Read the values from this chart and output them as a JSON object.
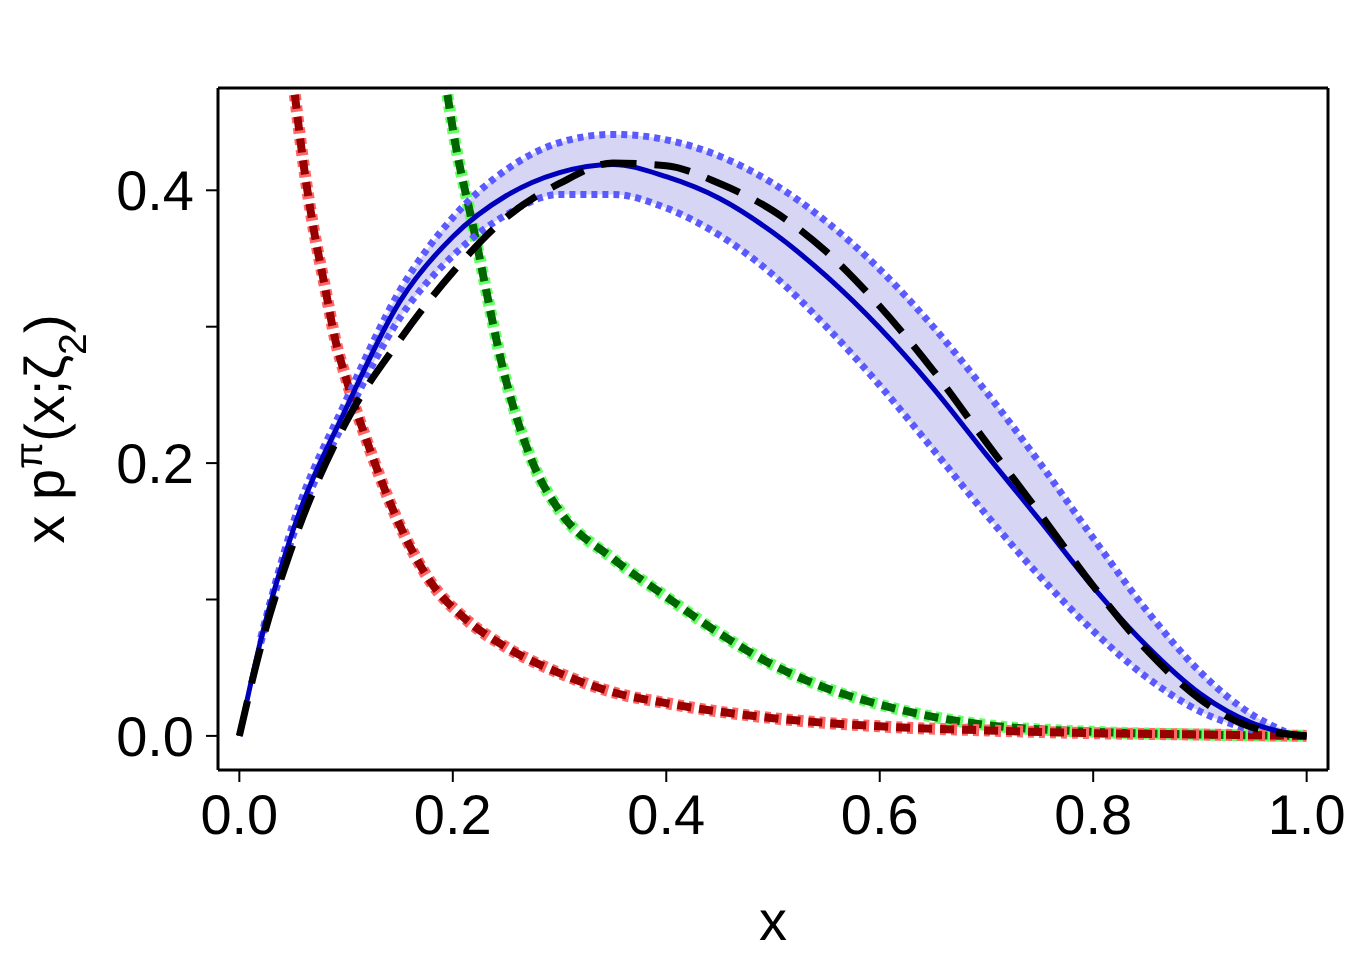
{
  "chart_data": {
    "type": "line",
    "xlabel": "x",
    "ylabel": "x p$^{π}$(x;ζ$_{2}$)",
    "xlim": [
      -0.02,
      1.02
    ],
    "ylim": [
      -0.025,
      0.475
    ],
    "xticks": [
      {
        "value": 0,
        "label": "0.0"
      },
      {
        "value": 0.2,
        "label": "0.2"
      },
      {
        "value": 0.4,
        "label": "0.4"
      },
      {
        "value": 0.6,
        "label": "0.6"
      },
      {
        "value": 0.8,
        "label": "0.8"
      },
      {
        "value": 1,
        "label": "1.0"
      }
    ],
    "yticks": [
      {
        "value": 0,
        "label": "0.0"
      },
      {
        "value": 0.1,
        "label": null
      },
      {
        "value": 0.2,
        "label": "0.2"
      },
      {
        "value": 0.3,
        "label": null
      },
      {
        "value": 0.4,
        "label": "0.4"
      }
    ],
    "grid": false,
    "series": [
      {
        "color": "#66ff66",
        "line_style": "dotted",
        "x": [
          0.195,
          0.2,
          0.22,
          0.25,
          0.275,
          0.3,
          0.35,
          0.4,
          0.45,
          0.5,
          0.55,
          0.6,
          0.65,
          0.7,
          0.8,
          0.9,
          1.0
        ],
        "values": [
          0.47,
          0.445,
          0.37,
          0.26,
          0.2,
          0.165,
          0.13,
          0.102,
          0.075,
          0.052,
          0.035,
          0.023,
          0.014,
          0.008,
          0.003,
          0.001,
          0
        ]
      },
      {
        "color": "#006600",
        "line_style": "dashed",
        "x": [
          0.195,
          0.2,
          0.22,
          0.25,
          0.275,
          0.3,
          0.35,
          0.4,
          0.45,
          0.5,
          0.55,
          0.6,
          0.65,
          0.7,
          0.8,
          0.9,
          1.0
        ],
        "values": [
          0.47,
          0.445,
          0.37,
          0.26,
          0.2,
          0.165,
          0.13,
          0.102,
          0.075,
          0.052,
          0.035,
          0.023,
          0.014,
          0.008,
          0.003,
          0.001,
          0
        ]
      },
      {
        "color": "#ff6666",
        "line_style": "dotted",
        "x": [
          0.052,
          0.06,
          0.07,
          0.08,
          0.09,
          0.1,
          0.12,
          0.15,
          0.18,
          0.21,
          0.25,
          0.3,
          0.35,
          0.4,
          0.5,
          0.6,
          0.7,
          0.8,
          0.9,
          1.0
        ],
        "values": [
          0.47,
          0.42,
          0.37,
          0.33,
          0.29,
          0.262,
          0.215,
          0.155,
          0.112,
          0.087,
          0.065,
          0.046,
          0.032,
          0.024,
          0.013,
          0.007,
          0.004,
          0.002,
          0.001,
          0
        ]
      },
      {
        "color": "#990000",
        "line_style": "dashed",
        "x": [
          0.052,
          0.06,
          0.07,
          0.08,
          0.09,
          0.1,
          0.12,
          0.15,
          0.18,
          0.21,
          0.25,
          0.3,
          0.35,
          0.4,
          0.5,
          0.6,
          0.7,
          0.8,
          0.9,
          1.0
        ],
        "values": [
          0.47,
          0.42,
          0.37,
          0.33,
          0.29,
          0.262,
          0.215,
          0.155,
          0.112,
          0.087,
          0.065,
          0.046,
          0.032,
          0.024,
          0.013,
          0.007,
          0.004,
          0.002,
          0.001,
          0
        ]
      },
      {
        "color": "#5a5aff",
        "line_style": "dotted",
        "x": [
          0.02,
          0.05,
          0.1,
          0.15,
          0.2,
          0.25,
          0.3,
          0.35,
          0.4,
          0.45,
          0.5,
          0.55,
          0.6,
          0.65,
          0.7,
          0.75,
          0.8,
          0.85,
          0.9,
          0.95
        ],
        "values": [
          0.068,
          0.146,
          0.233,
          0.306,
          0.352,
          0.382,
          0.397,
          0.397,
          0.387,
          0.367,
          0.338,
          0.3,
          0.257,
          0.21,
          0.162,
          0.117,
          0.077,
          0.043,
          0.018,
          0.004
        ]
      },
      {
        "color": "#5a5aff",
        "line_style": "dotted",
        "x": [
          0.02,
          0.05,
          0.1,
          0.15,
          0.2,
          0.25,
          0.3,
          0.35,
          0.4,
          0.45,
          0.5,
          0.55,
          0.6,
          0.65,
          0.7,
          0.75,
          0.8,
          0.85,
          0.9,
          0.95,
          0.98
        ],
        "values": [
          0.072,
          0.155,
          0.246,
          0.326,
          0.38,
          0.415,
          0.435,
          0.441,
          0.437,
          0.425,
          0.405,
          0.377,
          0.342,
          0.3,
          0.252,
          0.2,
          0.145,
          0.092,
          0.047,
          0.015,
          0.003
        ]
      },
      {
        "color": "#0000bb",
        "line_style": "solid",
        "x": [
          0,
          0.02,
          0.05,
          0.1,
          0.15,
          0.2,
          0.25,
          0.3,
          0.35,
          0.4,
          0.45,
          0.5,
          0.55,
          0.6,
          0.65,
          0.7,
          0.75,
          0.8,
          0.85,
          0.9,
          0.95,
          1.0
        ],
        "values": [
          0,
          0.07,
          0.15,
          0.24,
          0.318,
          0.366,
          0.396,
          0.413,
          0.419,
          0.41,
          0.394,
          0.369,
          0.337,
          0.299,
          0.255,
          0.206,
          0.158,
          0.109,
          0.066,
          0.031,
          0.009,
          0
        ],
        "lower": [
          0,
          0.068,
          0.146,
          0.233,
          0.306,
          0.352,
          0.382,
          0.397,
          0.397,
          0.387,
          0.367,
          0.338,
          0.3,
          0.257,
          0.21,
          0.162,
          0.117,
          0.077,
          0.043,
          0.018,
          0.004,
          0
        ],
        "upper": [
          0,
          0.072,
          0.155,
          0.246,
          0.326,
          0.38,
          0.415,
          0.435,
          0.441,
          0.437,
          0.425,
          0.405,
          0.377,
          0.342,
          0.3,
          0.252,
          0.2,
          0.145,
          0.092,
          0.047,
          0.015,
          0
        ]
      },
      {
        "color": "#000000",
        "line_style": "dashed",
        "x": [
          0,
          0.02,
          0.05,
          0.1,
          0.15,
          0.2,
          0.25,
          0.3,
          0.35,
          0.4,
          0.45,
          0.5,
          0.55,
          0.6,
          0.65,
          0.7,
          0.75,
          0.8,
          0.85,
          0.9,
          0.95,
          1.0
        ],
        "values": [
          0,
          0.065,
          0.14,
          0.23,
          0.29,
          0.34,
          0.38,
          0.405,
          0.42,
          0.418,
          0.405,
          0.385,
          0.355,
          0.315,
          0.268,
          0.215,
          0.163,
          0.11,
          0.063,
          0.027,
          0.006,
          0
        ]
      }
    ]
  }
}
